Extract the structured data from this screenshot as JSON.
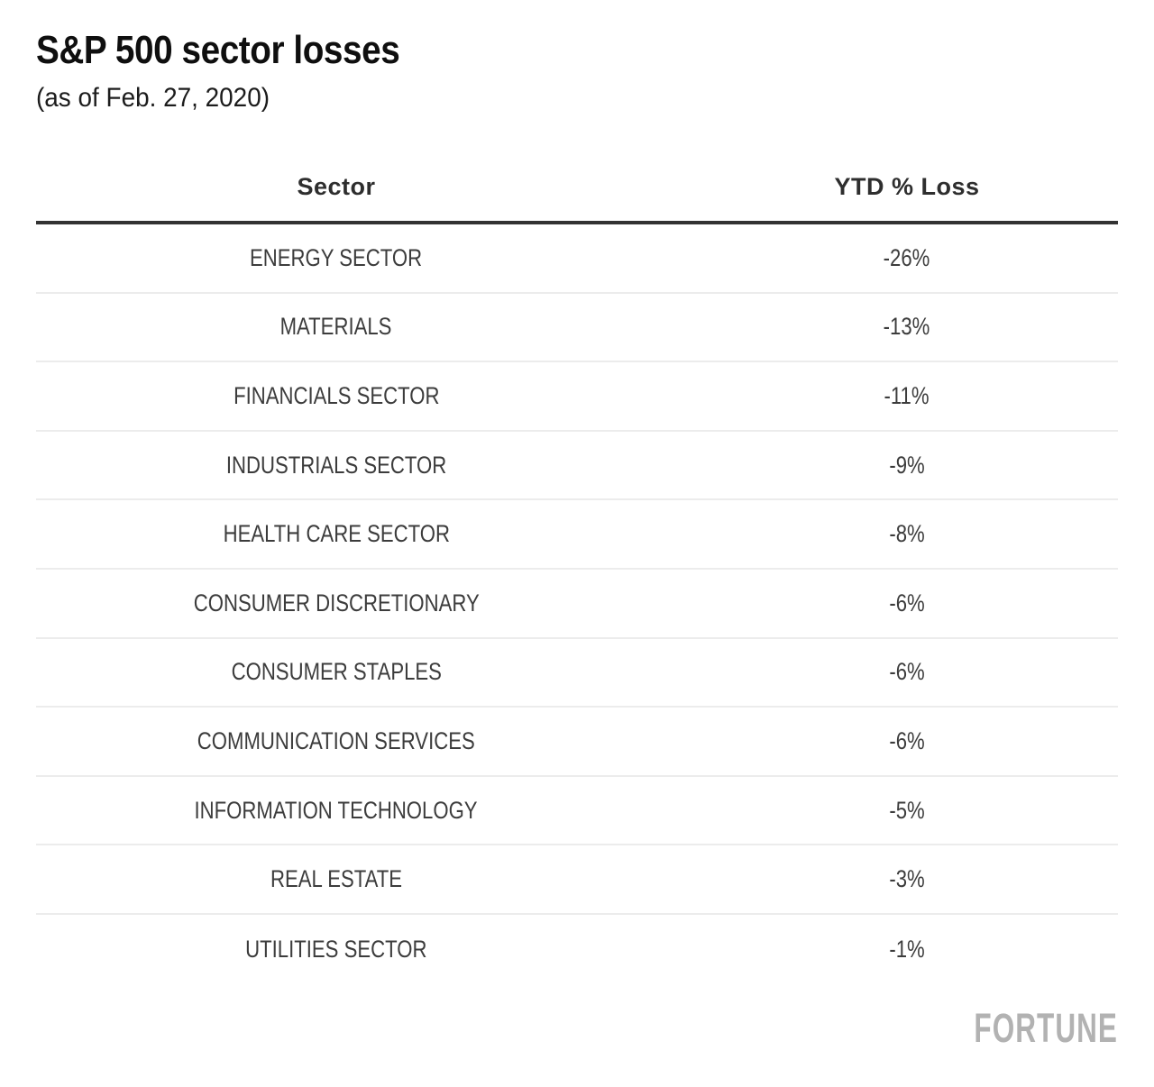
{
  "page": {
    "title": "S&P 500 sector losses",
    "subtitle": "(as of Feb. 27, 2020)",
    "brand": "FORTUNE"
  },
  "table": {
    "columns": {
      "sector": "Sector",
      "loss": "YTD % Loss"
    },
    "rows": [
      {
        "sector": "ENERGY SECTOR",
        "loss": "-26%"
      },
      {
        "sector": "MATERIALS",
        "loss": "-13%"
      },
      {
        "sector": "FINANCIALS SECTOR",
        "loss": "-11%"
      },
      {
        "sector": "INDUSTRIALS SECTOR",
        "loss": "-9%"
      },
      {
        "sector": "HEALTH CARE SECTOR",
        "loss": "-8%"
      },
      {
        "sector": "CONSUMER DISCRETIONARY",
        "loss": "-6%"
      },
      {
        "sector": "CONSUMER STAPLES",
        "loss": "-6%"
      },
      {
        "sector": "COMMUNICATION SERVICES",
        "loss": "-6%"
      },
      {
        "sector": "INFORMATION TECHNOLOGY",
        "loss": "-5%"
      },
      {
        "sector": "REAL ESTATE",
        "loss": "-3%"
      },
      {
        "sector": "UTILITIES SECTOR",
        "loss": "-1%"
      }
    ]
  },
  "chart_data": {
    "type": "table",
    "title": "S&P 500 sector losses",
    "subtitle": "(as of Feb. 27, 2020)",
    "columns": [
      "Sector",
      "YTD % Loss"
    ],
    "categories": [
      "ENERGY SECTOR",
      "MATERIALS",
      "FINANCIALS SECTOR",
      "INDUSTRIALS SECTOR",
      "HEALTH CARE SECTOR",
      "CONSUMER DISCRETIONARY",
      "CONSUMER STAPLES",
      "COMMUNICATION SERVICES",
      "INFORMATION TECHNOLOGY",
      "REAL ESTATE",
      "UTILITIES SECTOR"
    ],
    "values": [
      -26,
      -13,
      -11,
      -9,
      -8,
      -6,
      -6,
      -6,
      -5,
      -3,
      -1
    ],
    "value_labels": [
      "-26%",
      "-13%",
      "-11%",
      "-9%",
      "-8%",
      "-6%",
      "-6%",
      "-6%",
      "-5%",
      "-3%",
      "-1%"
    ],
    "unit": "YTD % loss",
    "source_brand": "FORTUNE"
  },
  "colors": {
    "background": "#ffffff",
    "title_text": "#0f0f0f",
    "body_text": "#3c3c3c",
    "header_rule": "#333333",
    "row_divider": "#ececec",
    "brand_gray": "#b2b2b2"
  }
}
